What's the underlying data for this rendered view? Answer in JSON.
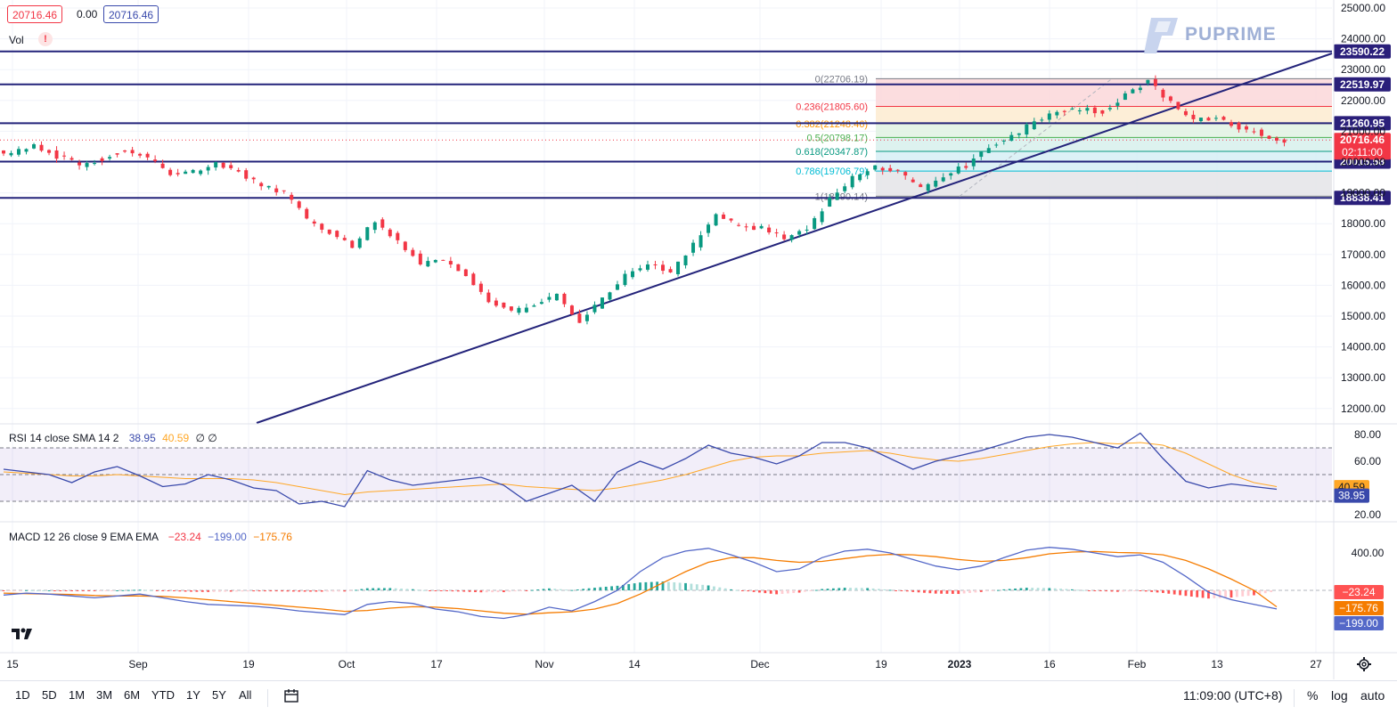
{
  "header": {
    "price_pill_1": "20716.46",
    "change": "0.00",
    "price_pill_2": "20716.46",
    "vol_label": "Vol",
    "vol_warning": "!"
  },
  "logo": {
    "text": "PUPRIME"
  },
  "price_axis": {
    "ticks": [
      "25000.00",
      "24000.00",
      "23000.00",
      "22000.00",
      "21000.00",
      "20000.00",
      "19000.00",
      "18000.00",
      "17000.00",
      "16000.00",
      "15000.00",
      "14000.00",
      "13000.00",
      "12000.00"
    ],
    "tick_values": [
      25000,
      24000,
      23000,
      22000,
      21000,
      20000,
      19000,
      18000,
      17000,
      16000,
      15000,
      14000,
      13000,
      12000
    ]
  },
  "levels": [
    {
      "label": "23590.22",
      "value": 23590.22
    },
    {
      "label": "22519.97",
      "value": 22519.97
    },
    {
      "label": "21260.95",
      "value": 21260.95
    },
    {
      "label": "20015.58",
      "value": 20015.58
    },
    {
      "label": "18838.41",
      "value": 18838.41
    }
  ],
  "current_price": {
    "label": "20716.46",
    "value": 20716.46,
    "countdown": "02:11:00",
    "color": "#f23645"
  },
  "fibonacci": {
    "levels": [
      {
        "label": "0(22706.19)",
        "value": 22706.19,
        "color": "#787b86"
      },
      {
        "label": "0.236(21805.60)",
        "value": 21805.6,
        "color": "#f23645"
      },
      {
        "label": "0.382(21248.46)",
        "value": 21248.46,
        "color": "#ff9800"
      },
      {
        "label": "0.5(20798.17)",
        "value": 20798.17,
        "color": "#4caf50"
      },
      {
        "label": "0.618(20347.87)",
        "value": 20347.87,
        "color": "#089981"
      },
      {
        "label": "0.786(19706.79)",
        "value": 19706.79,
        "color": "#00bcd4"
      },
      {
        "label": "1(18890.14)",
        "value": 18890.14,
        "color": "#787b86"
      }
    ]
  },
  "time_axis": {
    "labels": [
      "15",
      "Sep",
      "19",
      "Oct",
      "17",
      "Nov",
      "14",
      "Dec",
      "19",
      "2023",
      "16",
      "Feb",
      "13",
      "27"
    ],
    "bold": [
      "2023"
    ]
  },
  "rsi": {
    "legend_name": "RSI 14 close SMA 14 2",
    "rsi_value": "38.95",
    "sma_value": "40.59",
    "extra": "∅ ∅",
    "axis_ticks": [
      "80.00",
      "60.00",
      "20.00"
    ],
    "axis_values": [
      80,
      60,
      20
    ],
    "bands": {
      "upper": 70,
      "middle": 50,
      "lower": 30
    },
    "rsi_color": "#3949ab",
    "sma_color": "#ffa726"
  },
  "macd": {
    "legend_name": "MACD 12 26 close 9 EMA EMA",
    "hist_value": "−23.24",
    "macd_value": "−199.00",
    "signal_value": "−175.76",
    "axis_ticks": [
      "400.00"
    ],
    "axis_values": [
      400
    ],
    "macd_color": "#5468c8",
    "signal_color": "#f57c00"
  },
  "toolbar": {
    "timeframes": [
      "1D",
      "5D",
      "1M",
      "3M",
      "6M",
      "YTD",
      "1Y",
      "5Y",
      "All"
    ],
    "clock": "11:09:00 (UTC+8)",
    "percent": "%",
    "log": "log",
    "auto": "auto"
  },
  "colors": {
    "up": "#089981",
    "down": "#f23645",
    "line": "#23237a",
    "grid": "#f0f3fa"
  },
  "chart_data": {
    "type": "line",
    "series": [
      {
        "values": [
          20300,
          20500,
          20200,
          19900,
          20100,
          20400,
          20150,
          19650,
          19700,
          20000,
          19700,
          19250,
          19000,
          18150,
          17700,
          17300,
          18050,
          17450,
          16700,
          16800,
          16300,
          15500,
          15100,
          15400,
          15700,
          14800,
          15600,
          16300,
          16700,
          16400,
          17300,
          18300,
          17900,
          17850,
          17500,
          17800,
          18800,
          19500,
          19850,
          19700,
          19100,
          19550,
          19900,
          20500,
          20800,
          21300,
          21600,
          21700,
          21650,
          22200,
          22650,
          21900,
          21350,
          21400,
          21100,
          20900,
          20716
        ]
      }
    ],
    "ylim": [
      11500,
      25200
    ],
    "rsi_values": [
      54,
      52,
      50,
      44,
      52,
      56,
      49,
      41,
      43,
      50,
      46,
      40,
      38,
      28,
      30,
      26,
      53,
      46,
      42,
      44,
      46,
      48,
      42,
      30,
      36,
      42,
      30,
      52,
      60,
      54,
      62,
      72,
      66,
      63,
      58,
      64,
      74,
      74,
      70,
      62,
      54,
      60,
      64,
      68,
      73,
      78,
      80,
      78,
      74,
      70,
      81,
      62,
      45,
      40,
      43,
      41,
      39
    ],
    "rsi_sma": [
      52,
      51,
      50,
      49,
      49,
      50,
      49,
      48,
      47,
      47,
      47,
      46,
      44,
      41,
      38,
      35,
      37,
      38,
      39,
      40,
      41,
      42,
      43,
      41,
      40,
      39,
      38,
      40,
      43,
      46,
      50,
      55,
      60,
      63,
      64,
      64,
      66,
      67,
      68,
      66,
      63,
      61,
      60,
      62,
      65,
      68,
      71,
      73,
      74,
      73,
      74,
      72,
      66,
      58,
      50,
      44,
      41
    ],
    "macd_values": [
      -50,
      -30,
      -40,
      -60,
      -80,
      -60,
      -40,
      -80,
      -120,
      -150,
      -160,
      -170,
      -190,
      -220,
      -240,
      -260,
      -150,
      -120,
      -140,
      -200,
      -230,
      -280,
      -300,
      -260,
      -180,
      -220,
      -120,
      0,
      200,
      350,
      420,
      450,
      380,
      300,
      200,
      230,
      350,
      420,
      440,
      400,
      330,
      260,
      220,
      260,
      350,
      430,
      460,
      440,
      400,
      360,
      380,
      300,
      150,
      -20,
      -100,
      -150,
      -199
    ],
    "macd_signal": [
      -30,
      -35,
      -40,
      -45,
      -55,
      -60,
      -60,
      -65,
      -80,
      -100,
      -120,
      -140,
      -160,
      -180,
      -200,
      -225,
      -215,
      -190,
      -175,
      -180,
      -195,
      -220,
      -245,
      -255,
      -240,
      -230,
      -200,
      -140,
      -40,
      80,
      200,
      300,
      350,
      350,
      320,
      300,
      310,
      340,
      370,
      385,
      380,
      360,
      330,
      310,
      320,
      350,
      390,
      410,
      415,
      405,
      400,
      380,
      320,
      230,
      120,
      0,
      -175.76
    ]
  }
}
